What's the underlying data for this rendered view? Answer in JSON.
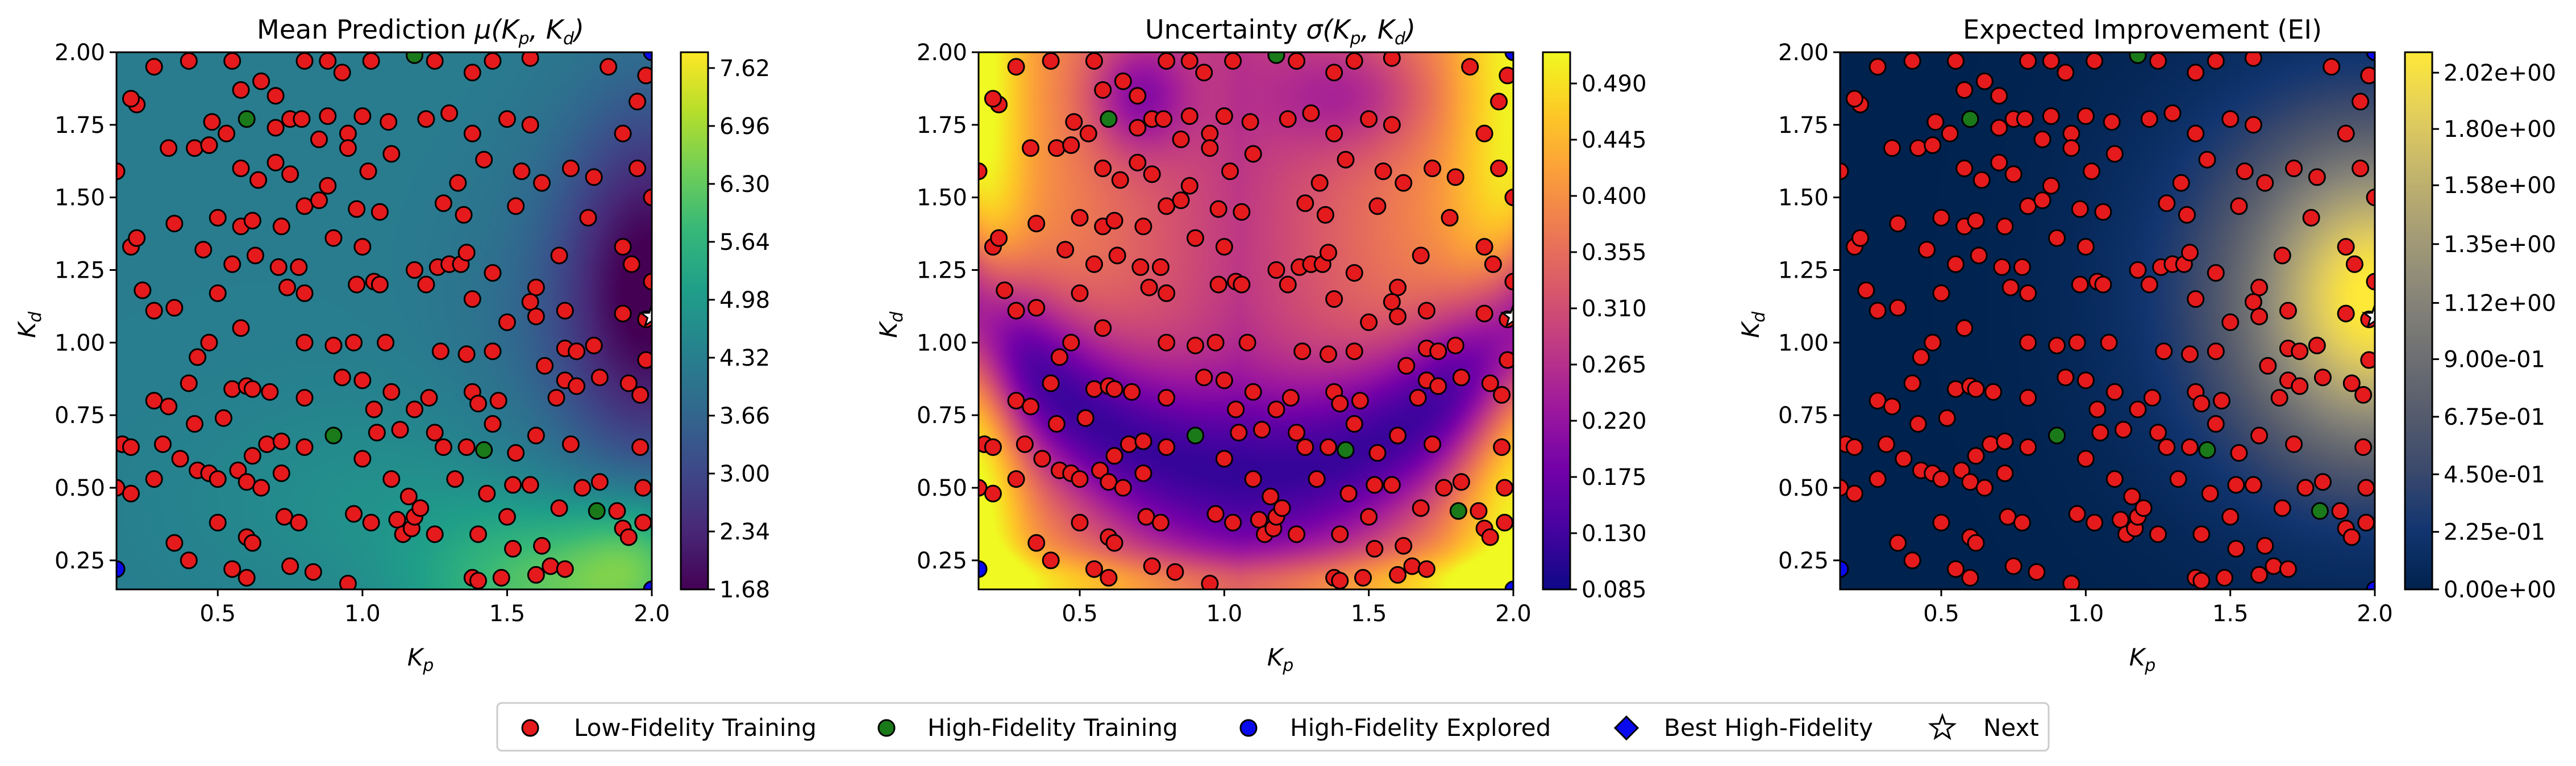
{
  "colors": {
    "low_fidelity": "#e41a1c",
    "high_fidelity_training": "#1a7a1a",
    "high_fidelity_explored": "#0a0aee",
    "best_high_fidelity": "#0a0aee",
    "next": "#ffffff"
  },
  "legend": {
    "items": [
      {
        "label": "Low-Fidelity Training",
        "marker": "circle",
        "color": "#e41a1c"
      },
      {
        "label": "High-Fidelity Training",
        "marker": "circle",
        "color": "#1a7a1a"
      },
      {
        "label": "High-Fidelity Explored",
        "marker": "circle",
        "color": "#0a0aee"
      },
      {
        "label": "Best High-Fidelity",
        "marker": "diamond",
        "color": "#0a0aee"
      },
      {
        "label": "Next",
        "marker": "star",
        "color": "#ffffff"
      }
    ]
  },
  "chart_data": [
    {
      "type": "heatmap",
      "title_main": "Mean Prediction ",
      "title_math": "μ(K",
      "title_sub1": "p",
      "title_mid": ", K",
      "title_sub2": "d",
      "title_end": ")",
      "colormap": "viridis",
      "xlabel": "K",
      "xlabel_sub": "p",
      "ylabel": "K",
      "ylabel_sub": "d",
      "xlim": [
        0.15,
        2.0
      ],
      "ylim": [
        0.15,
        2.0
      ],
      "xticks": [
        "0.5",
        "1.0",
        "1.5",
        "2.0"
      ],
      "yticks": [
        "0.25",
        "0.50",
        "0.75",
        "1.00",
        "1.25",
        "1.50",
        "1.75",
        "2.00"
      ],
      "colorbar_ticks": [
        "1.68",
        "2.34",
        "3.00",
        "3.66",
        "4.32",
        "4.98",
        "5.64",
        "6.30",
        "6.96",
        "7.62"
      ],
      "colorbar_range": [
        1.68,
        7.8
      ]
    },
    {
      "type": "heatmap",
      "title_main": "Uncertainty ",
      "title_math": "σ(K",
      "title_sub1": "p",
      "title_mid": ", K",
      "title_sub2": "d",
      "title_end": ")",
      "colormap": "plasma",
      "xlabel": "K",
      "xlabel_sub": "p",
      "ylabel": "K",
      "ylabel_sub": "d",
      "xlim": [
        0.15,
        2.0
      ],
      "ylim": [
        0.15,
        2.0
      ],
      "xticks": [
        "0.5",
        "1.0",
        "1.5",
        "2.0"
      ],
      "yticks": [
        "0.25",
        "0.50",
        "0.75",
        "1.00",
        "1.25",
        "1.50",
        "1.75",
        "2.00"
      ],
      "colorbar_ticks": [
        "0.085",
        "0.130",
        "0.175",
        "0.220",
        "0.265",
        "0.310",
        "0.355",
        "0.400",
        "0.445",
        "0.490"
      ],
      "colorbar_range": [
        0.085,
        0.515
      ]
    },
    {
      "type": "heatmap",
      "title_main": "Expected Improvement (EI)",
      "title_math": "",
      "title_sub1": "",
      "title_mid": "",
      "title_sub2": "",
      "title_end": "",
      "colormap": "cividis",
      "xlabel": "K",
      "xlabel_sub": "p",
      "ylabel": "K",
      "ylabel_sub": "d",
      "xlim": [
        0.15,
        2.0
      ],
      "ylim": [
        0.15,
        2.0
      ],
      "xticks": [
        "0.5",
        "1.0",
        "1.5",
        "2.0"
      ],
      "yticks": [
        "0.25",
        "0.50",
        "0.75",
        "1.00",
        "1.25",
        "1.50",
        "1.75",
        "2.00"
      ],
      "colorbar_ticks": [
        "0.00e+00",
        "2.25e-01",
        "4.50e-01",
        "6.75e-01",
        "9.00e-01",
        "1.12e+00",
        "1.35e+00",
        "1.58e+00",
        "1.80e+00",
        "2.02e+00"
      ],
      "colorbar_range": [
        0.0,
        2.1
      ]
    }
  ],
  "points": {
    "low_fidelity": [
      [
        0.22,
        1.82
      ],
      [
        0.28,
        1.95
      ],
      [
        0.4,
        1.97
      ],
      [
        0.55,
        1.97
      ],
      [
        0.58,
        1.87
      ],
      [
        0.65,
        1.9
      ],
      [
        0.7,
        1.85
      ],
      [
        0.8,
        1.97
      ],
      [
        0.88,
        1.97
      ],
      [
        0.93,
        1.93
      ],
      [
        1.03,
        1.97
      ],
      [
        1.25,
        1.97
      ],
      [
        1.38,
        1.93
      ],
      [
        1.45,
        1.97
      ],
      [
        1.58,
        1.98
      ],
      [
        1.85,
        1.95
      ],
      [
        1.98,
        1.92
      ],
      [
        0.2,
        1.84
      ],
      [
        0.33,
        1.67
      ],
      [
        0.48,
        1.76
      ],
      [
        0.53,
        1.72
      ],
      [
        0.7,
        1.74
      ],
      [
        0.75,
        1.77
      ],
      [
        0.79,
        1.77
      ],
      [
        0.85,
        1.7
      ],
      [
        0.88,
        1.78
      ],
      [
        0.95,
        1.72
      ],
      [
        1.0,
        1.78
      ],
      [
        1.09,
        1.76
      ],
      [
        1.22,
        1.77
      ],
      [
        1.3,
        1.79
      ],
      [
        1.38,
        1.72
      ],
      [
        1.5,
        1.77
      ],
      [
        1.58,
        1.75
      ],
      [
        1.9,
        1.72
      ],
      [
        1.95,
        1.83
      ],
      [
        0.15,
        1.59
      ],
      [
        0.42,
        1.67
      ],
      [
        0.47,
        1.68
      ],
      [
        0.58,
        1.6
      ],
      [
        0.64,
        1.56
      ],
      [
        0.7,
        1.62
      ],
      [
        0.75,
        1.58
      ],
      [
        0.88,
        1.54
      ],
      [
        0.95,
        1.67
      ],
      [
        1.02,
        1.59
      ],
      [
        1.1,
        1.65
      ],
      [
        1.33,
        1.55
      ],
      [
        1.42,
        1.63
      ],
      [
        1.55,
        1.59
      ],
      [
        1.62,
        1.55
      ],
      [
        1.72,
        1.6
      ],
      [
        1.8,
        1.57
      ],
      [
        1.95,
        1.6
      ],
      [
        0.35,
        1.41
      ],
      [
        0.5,
        1.43
      ],
      [
        0.58,
        1.4
      ],
      [
        0.62,
        1.42
      ],
      [
        0.72,
        1.4
      ],
      [
        0.8,
        1.47
      ],
      [
        0.85,
        1.49
      ],
      [
        0.98,
        1.46
      ],
      [
        1.06,
        1.45
      ],
      [
        1.28,
        1.48
      ],
      [
        1.35,
        1.44
      ],
      [
        1.53,
        1.47
      ],
      [
        1.78,
        1.43
      ],
      [
        2.0,
        1.5
      ],
      [
        0.2,
        1.33
      ],
      [
        0.22,
        1.36
      ],
      [
        0.45,
        1.32
      ],
      [
        0.55,
        1.27
      ],
      [
        0.63,
        1.3
      ],
      [
        0.71,
        1.26
      ],
      [
        0.78,
        1.26
      ],
      [
        0.9,
        1.36
      ],
      [
        1.0,
        1.33
      ],
      [
        1.18,
        1.25
      ],
      [
        1.22,
        1.2
      ],
      [
        1.26,
        1.26
      ],
      [
        1.3,
        1.27
      ],
      [
        1.34,
        1.27
      ],
      [
        1.36,
        1.31
      ],
      [
        1.45,
        1.24
      ],
      [
        1.6,
        1.19
      ],
      [
        1.68,
        1.3
      ],
      [
        1.9,
        1.33
      ],
      [
        1.93,
        1.27
      ],
      [
        2.0,
        1.21
      ],
      [
        0.24,
        1.18
      ],
      [
        0.28,
        1.11
      ],
      [
        0.35,
        1.12
      ],
      [
        0.5,
        1.17
      ],
      [
        0.74,
        1.19
      ],
      [
        0.8,
        1.17
      ],
      [
        0.98,
        1.2
      ],
      [
        1.04,
        1.21
      ],
      [
        1.06,
        1.2
      ],
      [
        1.38,
        1.15
      ],
      [
        1.5,
        1.07
      ],
      [
        1.58,
        1.14
      ],
      [
        1.6,
        1.09
      ],
      [
        1.7,
        1.11
      ],
      [
        1.9,
        1.1
      ],
      [
        1.98,
        1.08
      ],
      [
        0.43,
        0.95
      ],
      [
        0.47,
        1.0
      ],
      [
        0.58,
        1.05
      ],
      [
        0.8,
        1.0
      ],
      [
        0.9,
        0.99
      ],
      [
        0.97,
        1.0
      ],
      [
        1.08,
        1.0
      ],
      [
        1.27,
        0.97
      ],
      [
        1.36,
        0.96
      ],
      [
        1.45,
        0.97
      ],
      [
        1.7,
        0.98
      ],
      [
        1.74,
        0.97
      ],
      [
        1.8,
        0.99
      ],
      [
        1.98,
        0.94
      ],
      [
        0.28,
        0.8
      ],
      [
        0.33,
        0.78
      ],
      [
        0.4,
        0.86
      ],
      [
        0.55,
        0.84
      ],
      [
        0.6,
        0.85
      ],
      [
        0.62,
        0.84
      ],
      [
        0.68,
        0.83
      ],
      [
        0.8,
        0.81
      ],
      [
        0.93,
        0.88
      ],
      [
        1.0,
        0.87
      ],
      [
        1.04,
        0.77
      ],
      [
        1.1,
        0.83
      ],
      [
        1.18,
        0.77
      ],
      [
        1.23,
        0.81
      ],
      [
        1.38,
        0.83
      ],
      [
        1.4,
        0.79
      ],
      [
        1.47,
        0.8
      ],
      [
        1.63,
        0.92
      ],
      [
        1.67,
        0.81
      ],
      [
        1.7,
        0.87
      ],
      [
        1.74,
        0.85
      ],
      [
        1.82,
        0.88
      ],
      [
        1.92,
        0.86
      ],
      [
        1.96,
        0.82
      ],
      [
        0.17,
        0.65
      ],
      [
        0.2,
        0.64
      ],
      [
        0.31,
        0.65
      ],
      [
        0.37,
        0.6
      ],
      [
        0.42,
        0.72
      ],
      [
        0.52,
        0.74
      ],
      [
        0.62,
        0.61
      ],
      [
        0.67,
        0.65
      ],
      [
        0.72,
        0.66
      ],
      [
        0.8,
        0.64
      ],
      [
        1.0,
        0.6
      ],
      [
        1.05,
        0.69
      ],
      [
        1.13,
        0.7
      ],
      [
        1.25,
        0.69
      ],
      [
        1.28,
        0.64
      ],
      [
        1.36,
        0.64
      ],
      [
        1.45,
        0.72
      ],
      [
        1.53,
        0.62
      ],
      [
        1.6,
        0.68
      ],
      [
        1.72,
        0.65
      ],
      [
        1.96,
        0.64
      ],
      [
        0.15,
        0.5
      ],
      [
        0.2,
        0.48
      ],
      [
        0.28,
        0.53
      ],
      [
        0.43,
        0.56
      ],
      [
        0.47,
        0.55
      ],
      [
        0.5,
        0.53
      ],
      [
        0.57,
        0.56
      ],
      [
        0.6,
        0.52
      ],
      [
        0.65,
        0.5
      ],
      [
        0.72,
        0.55
      ],
      [
        1.1,
        0.53
      ],
      [
        1.16,
        0.47
      ],
      [
        1.32,
        0.53
      ],
      [
        1.43,
        0.48
      ],
      [
        1.52,
        0.51
      ],
      [
        1.58,
        0.51
      ],
      [
        1.68,
        0.43
      ],
      [
        1.76,
        0.5
      ],
      [
        1.82,
        0.52
      ],
      [
        1.88,
        0.42
      ],
      [
        1.97,
        0.5
      ],
      [
        0.35,
        0.31
      ],
      [
        0.5,
        0.38
      ],
      [
        0.6,
        0.33
      ],
      [
        0.62,
        0.31
      ],
      [
        0.73,
        0.4
      ],
      [
        0.78,
        0.38
      ],
      [
        0.97,
        0.41
      ],
      [
        1.03,
        0.38
      ],
      [
        1.12,
        0.39
      ],
      [
        1.14,
        0.34
      ],
      [
        1.17,
        0.36
      ],
      [
        1.18,
        0.4
      ],
      [
        1.2,
        0.43
      ],
      [
        1.25,
        0.34
      ],
      [
        1.4,
        0.34
      ],
      [
        1.5,
        0.4
      ],
      [
        1.52,
        0.29
      ],
      [
        1.62,
        0.3
      ],
      [
        1.9,
        0.36
      ],
      [
        1.92,
        0.33
      ],
      [
        1.97,
        0.38
      ],
      [
        0.4,
        0.25
      ],
      [
        0.55,
        0.22
      ],
      [
        0.6,
        0.19
      ],
      [
        0.75,
        0.23
      ],
      [
        0.83,
        0.21
      ],
      [
        0.95,
        0.17
      ],
      [
        1.38,
        0.19
      ],
      [
        1.4,
        0.18
      ],
      [
        1.48,
        0.19
      ],
      [
        1.6,
        0.2
      ],
      [
        1.65,
        0.23
      ],
      [
        1.7,
        0.22
      ]
    ],
    "high_fidelity_training": [
      [
        0.6,
        1.77
      ],
      [
        1.18,
        1.99
      ],
      [
        0.9,
        0.68
      ],
      [
        1.42,
        0.63
      ],
      [
        1.81,
        0.42
      ]
    ],
    "high_fidelity_explored": [
      [
        0.15,
        0.22
      ],
      [
        2.0,
        2.0
      ],
      [
        2.0,
        0.15
      ]
    ],
    "next": [
      [
        2.0,
        1.09
      ]
    ]
  }
}
